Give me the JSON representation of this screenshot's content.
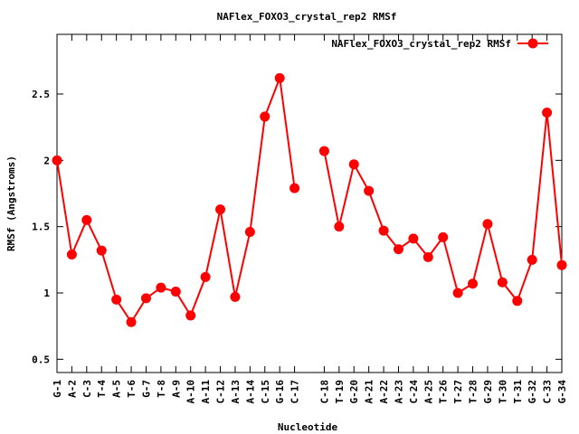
{
  "chart_data": {
    "type": "line",
    "title": "NAFlex_FOXO3_crystal_rep2 RMSf",
    "xlabel": "Nucleotide",
    "ylabel": "RMSf (Angstroms)",
    "ylim": [
      0.4,
      2.95
    ],
    "yticks": [
      "0.5",
      "1",
      "1.5",
      "2",
      "2.5"
    ],
    "ytick_values": [
      0.5,
      1,
      1.5,
      2,
      2.5
    ],
    "grid": false,
    "legend_position": "top-right",
    "categories": [
      "G-1",
      "A-2",
      "C-3",
      "T-4",
      "A-5",
      "T-6",
      "G-7",
      "T-8",
      "A-9",
      "A-10",
      "A-11",
      "C-12",
      "A-13",
      "A-14",
      "C-15",
      "G-16",
      "C-17",
      "C-18",
      "T-19",
      "G-20",
      "A-21",
      "A-22",
      "A-23",
      "C-24",
      "A-25",
      "T-26",
      "T-27",
      "T-28",
      "G-29",
      "T-30",
      "T-31",
      "G-32",
      "C-33",
      "G-34"
    ],
    "x": [
      1,
      2,
      3,
      4,
      5,
      6,
      7,
      8,
      9,
      10,
      11,
      12,
      13,
      14,
      15,
      16,
      17,
      19,
      20,
      21,
      22,
      23,
      24,
      25,
      26,
      27,
      28,
      29,
      30,
      31,
      32,
      33,
      34,
      35
    ],
    "x_range": [
      1,
      35
    ],
    "series": [
      {
        "name": "NAFlex_FOXO3_crystal_rep2 RMSf",
        "color": "#ff0000",
        "segments": [
          [
            0,
            16
          ],
          [
            17,
            33
          ]
        ],
        "values": [
          2.0,
          1.29,
          1.55,
          1.32,
          0.95,
          0.78,
          0.96,
          1.04,
          1.01,
          0.83,
          1.12,
          1.63,
          0.97,
          1.46,
          2.33,
          2.62,
          1.79,
          2.07,
          1.5,
          1.97,
          1.77,
          1.47,
          1.33,
          1.41,
          1.27,
          1.42,
          1.0,
          1.07,
          1.52,
          1.08,
          0.94,
          1.25,
          2.36,
          1.21
        ]
      }
    ]
  }
}
